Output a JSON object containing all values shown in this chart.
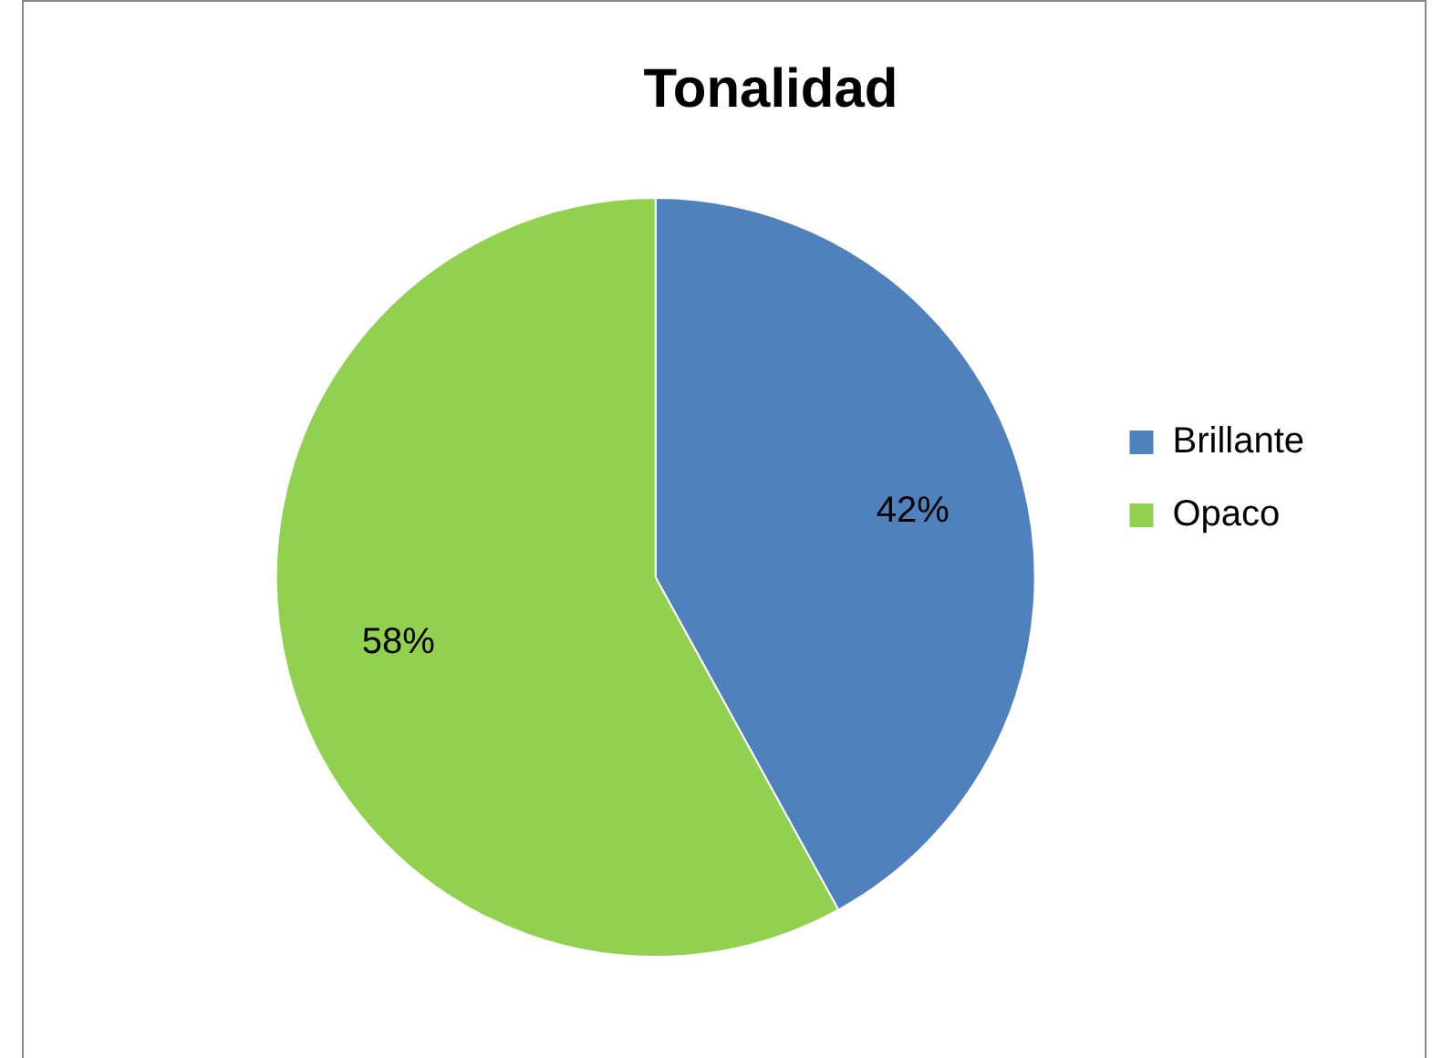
{
  "chart_data": {
    "type": "pie",
    "title": "Tonalidad",
    "categories": [
      "Brillante",
      "Opaco"
    ],
    "values": [
      42,
      58
    ],
    "colors": [
      "#4f81bd",
      "#92d050"
    ],
    "value_labels": [
      "42%",
      "58%"
    ],
    "legend": "right"
  }
}
